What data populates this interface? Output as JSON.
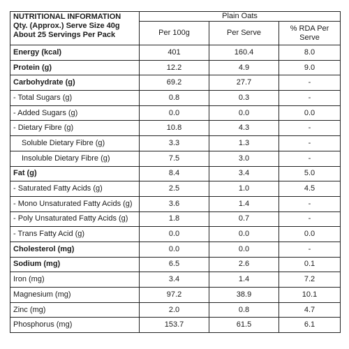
{
  "header": {
    "info_lines": [
      "NUTRITIONAL INFORMATION",
      "Qty. (Approx.) Serve Size 40g",
      "About 25 Servings Per Pack"
    ],
    "product": "Plain Oats",
    "columns": [
      "Per 100g",
      "Per Serve",
      "% RDA Per Serve"
    ]
  },
  "rows": [
    {
      "name": "Energy (kcal)",
      "per100": "401",
      "perServe": "160.4",
      "rda": "8.0",
      "bold": true
    },
    {
      "name": "Protein (g)",
      "per100": "12.2",
      "perServe": "4.9",
      "rda": "9.0",
      "bold": true
    },
    {
      "name": "Carbohydrate (g)",
      "per100": "69.2",
      "perServe": "27.7",
      "rda": "-",
      "bold": true
    },
    {
      "name": "- Total Sugars (g)",
      "per100": "0.8",
      "perServe": "0.3",
      "rda": "-"
    },
    {
      "name": "- Added Sugars (g)",
      "per100": "0.0",
      "perServe": "0.0",
      "rda": "0.0"
    },
    {
      "name": "- Dietary Fibre (g)",
      "per100": "10.8",
      "perServe": "4.3",
      "rda": "-"
    },
    {
      "name": "Soluble Dietary Fibre (g)",
      "per100": "3.3",
      "perServe": "1.3",
      "rda": "-",
      "indent": true
    },
    {
      "name": "Insoluble Dietary Fibre (g)",
      "per100": "7.5",
      "perServe": "3.0",
      "rda": "-",
      "indent": true
    },
    {
      "name": "Fat (g)",
      "per100": "8.4",
      "perServe": "3.4",
      "rda": "5.0",
      "bold": true
    },
    {
      "name": "- Saturated Fatty Acids (g)",
      "per100": "2.5",
      "perServe": "1.0",
      "rda": "4.5"
    },
    {
      "name": "- Mono Unsaturated Fatty Acids (g)",
      "per100": "3.6",
      "perServe": "1.4",
      "rda": "-"
    },
    {
      "name": "- Poly Unsaturated Fatty Acids (g)",
      "per100": "1.8",
      "perServe": "0.7",
      "rda": "-"
    },
    {
      "name": "- Trans Fatty Acid (g)",
      "per100": "0.0",
      "perServe": "0.0",
      "rda": "0.0"
    },
    {
      "name": "Cholesterol (mg)",
      "per100": "0.0",
      "perServe": "0.0",
      "rda": "-",
      "bold": true
    },
    {
      "name": "Sodium (mg)",
      "per100": "6.5",
      "perServe": "2.6",
      "rda": "0.1",
      "bold": true
    },
    {
      "name": "Iron (mg)",
      "per100": "3.4",
      "perServe": "1.4",
      "rda": "7.2"
    },
    {
      "name": "Magnesium (mg)",
      "per100": "97.2",
      "perServe": "38.9",
      "rda": "10.1"
    },
    {
      "name": "Zinc (mg)",
      "per100": "2.0",
      "perServe": "0.8",
      "rda": "4.7"
    },
    {
      "name": "Phosphorus (mg)",
      "per100": "153.7",
      "perServe": "61.5",
      "rda": "6.1"
    }
  ]
}
